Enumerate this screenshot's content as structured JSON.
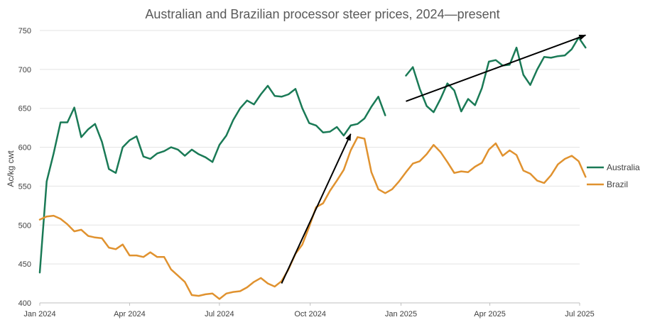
{
  "chart_data": {
    "type": "line",
    "title": "Australian and Brazilian processor steer prices, 2024—present",
    "ylabel": "Ac/kg cwt",
    "xlabel": "",
    "ylim": [
      400,
      750
    ],
    "yticks": [
      400,
      450,
      500,
      550,
      600,
      650,
      700,
      750
    ],
    "x_range": [
      "2024-01-01",
      "2025-07-01"
    ],
    "xticks": [
      {
        "date": "2024-01-01",
        "label": "Jan 2024"
      },
      {
        "date": "2024-04-01",
        "label": "Apr 2024"
      },
      {
        "date": "2024-07-01",
        "label": "Jul 2024"
      },
      {
        "date": "2024-10-01",
        "label": "Oct 2024"
      },
      {
        "date": "2025-01-01",
        "label": "Jan 2025"
      },
      {
        "date": "2025-04-01",
        "label": "Apr 2025"
      },
      {
        "date": "2025-07-01",
        "label": "Jul 2025"
      }
    ],
    "grid": true,
    "legend_position": "right",
    "series": [
      {
        "name": "Australia",
        "color": "#1a7a56",
        "segments": [
          {
            "x": [
              "2024-01-01",
              "2024-01-08",
              "2024-01-15",
              "2024-01-22",
              "2024-01-29",
              "2024-02-05",
              "2024-02-12",
              "2024-02-19",
              "2024-02-26",
              "2024-03-04",
              "2024-03-11",
              "2024-03-18",
              "2024-03-25",
              "2024-04-01",
              "2024-04-08",
              "2024-04-15",
              "2024-04-22",
              "2024-04-29",
              "2024-05-06",
              "2024-05-13",
              "2024-05-20",
              "2024-05-27",
              "2024-06-03",
              "2024-06-10",
              "2024-06-17",
              "2024-06-24",
              "2024-07-01",
              "2024-07-08",
              "2024-07-15",
              "2024-07-22",
              "2024-07-29",
              "2024-08-05",
              "2024-08-12",
              "2024-08-19",
              "2024-08-26",
              "2024-09-02",
              "2024-09-09",
              "2024-09-16",
              "2024-09-23",
              "2024-09-30",
              "2024-10-07",
              "2024-10-14",
              "2024-10-21",
              "2024-10-28",
              "2024-11-04",
              "2024-11-11",
              "2024-11-18",
              "2024-11-25",
              "2024-12-02",
              "2024-12-09",
              "2024-12-16"
            ],
            "y": [
              439,
              556,
              592,
              632,
              632,
              651,
              613,
              623,
              630,
              607,
              572,
              567,
              600,
              609,
              614,
              588,
              585,
              592,
              595,
              600,
              597,
              589,
              597,
              591,
              587,
              581,
              603,
              615,
              635,
              650,
              660,
              655,
              668,
              679,
              666,
              665,
              668,
              675,
              650,
              631,
              628,
              619,
              620,
              626,
              615,
              628,
              630,
              637,
              652,
              665,
              641
            ]
          },
          {
            "x": [
              "2025-01-06",
              "2025-01-13",
              "2025-01-20",
              "2025-01-27",
              "2025-02-03",
              "2025-02-10",
              "2025-02-17",
              "2025-02-24",
              "2025-03-03",
              "2025-03-10",
              "2025-03-17",
              "2025-03-24",
              "2025-03-31",
              "2025-04-07",
              "2025-04-14",
              "2025-04-21",
              "2025-04-28",
              "2025-05-05",
              "2025-05-12",
              "2025-05-19",
              "2025-05-26",
              "2025-06-02",
              "2025-06-09",
              "2025-06-16",
              "2025-06-23",
              "2025-06-30",
              "2025-07-07"
            ],
            "y": [
              692,
              703,
              675,
              653,
              645,
              662,
              682,
              673,
              646,
              662,
              654,
              676,
              710,
              712,
              705,
              706,
              728,
              693,
              680,
              700,
              716,
              715,
              717,
              718,
              726,
              741,
              728
            ]
          }
        ]
      },
      {
        "name": "Brazil",
        "color": "#e0922f",
        "segments": [
          {
            "x": [
              "2024-01-01",
              "2024-01-08",
              "2024-01-15",
              "2024-01-22",
              "2024-01-29",
              "2024-02-05",
              "2024-02-12",
              "2024-02-19",
              "2024-02-26",
              "2024-03-04",
              "2024-03-11",
              "2024-03-18",
              "2024-03-25",
              "2024-04-01",
              "2024-04-08",
              "2024-04-15",
              "2024-04-22",
              "2024-04-29",
              "2024-05-06",
              "2024-05-13",
              "2024-05-20",
              "2024-05-27",
              "2024-06-03",
              "2024-06-10",
              "2024-06-17",
              "2024-06-24",
              "2024-07-01",
              "2024-07-08",
              "2024-07-15",
              "2024-07-22",
              "2024-07-29",
              "2024-08-05",
              "2024-08-12",
              "2024-08-19",
              "2024-08-26",
              "2024-09-02",
              "2024-09-09",
              "2024-09-16",
              "2024-09-23",
              "2024-09-30",
              "2024-10-07",
              "2024-10-14",
              "2024-10-21",
              "2024-10-28",
              "2024-11-04",
              "2024-11-11",
              "2024-11-18",
              "2024-11-25",
              "2024-12-02",
              "2024-12-09",
              "2024-12-16",
              "2024-12-23",
              "2024-12-30",
              "2025-01-06",
              "2025-01-13",
              "2025-01-20",
              "2025-01-27",
              "2025-02-03",
              "2025-02-10",
              "2025-02-17",
              "2025-02-24",
              "2025-03-03",
              "2025-03-10",
              "2025-03-17",
              "2025-03-24",
              "2025-03-31",
              "2025-04-07",
              "2025-04-14",
              "2025-04-21",
              "2025-04-28",
              "2025-05-05",
              "2025-05-12",
              "2025-05-19",
              "2025-05-26",
              "2025-06-02",
              "2025-06-09",
              "2025-06-16",
              "2025-06-23",
              "2025-06-30",
              "2025-07-07"
            ],
            "y": [
              507,
              511,
              512,
              508,
              501,
              492,
              494,
              486,
              484,
              483,
              471,
              469,
              475,
              461,
              461,
              459,
              465,
              459,
              459,
              443,
              435,
              427,
              410,
              409,
              411,
              412,
              405,
              412,
              414,
              415,
              420,
              427,
              432,
              425,
              421,
              428,
              443,
              463,
              475,
              498,
              523,
              528,
              544,
              557,
              571,
              596,
              613,
              611,
              568,
              546,
              541,
              546,
              556,
              568,
              579,
              582,
              591,
              603,
              594,
              581,
              567,
              569,
              568,
              575,
              580,
              597,
              605,
              589,
              596,
              590,
              570,
              566,
              557,
              554,
              564,
              578,
              585,
              589,
              582,
              562
            ]
          }
        ]
      }
    ],
    "annotations": [
      {
        "type": "arrow",
        "from": {
          "x": "2024-09-02",
          "y": 425
        },
        "to": {
          "x": "2024-11-11",
          "y": 617
        }
      },
      {
        "type": "arrow",
        "from": {
          "x": "2025-01-06",
          "y": 659
        },
        "to": {
          "x": "2025-07-07",
          "y": 744
        }
      }
    ]
  }
}
